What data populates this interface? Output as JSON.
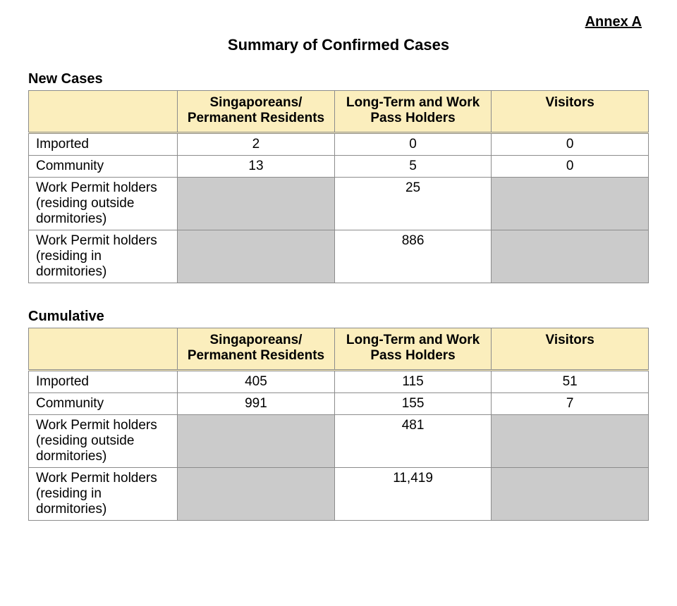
{
  "annex": "Annex A",
  "title": "Summary of Confirmed Cases",
  "colors": {
    "header_bg": "#fbeebd",
    "blank_bg": "#cbcbcb",
    "border": "#8c8c8c",
    "page_bg": "#ffffff",
    "text": "#000000"
  },
  "typography": {
    "title_fontsize": 22,
    "section_fontsize": 20,
    "cell_fontsize": 19,
    "annex_fontsize": 20,
    "font_family": "Arial"
  },
  "columns": [
    "Singaporeans/ Permanent Residents",
    "Long-Term and Work Pass Holders",
    "Visitors"
  ],
  "column_widths_pct": [
    24,
    25.3,
    25.3,
    25.3
  ],
  "row_labels": {
    "imported": "Imported",
    "community": "Community",
    "wp_outside": "Work Permit holders (residing outside dormitories)",
    "wp_inside": "Work Permit holders (residing in dormitories)"
  },
  "sections": {
    "new": {
      "heading": "New Cases",
      "rows": {
        "imported": {
          "spr": "2",
          "ltwp": "0",
          "visitors": "0"
        },
        "community": {
          "spr": "13",
          "ltwp": "5",
          "visitors": "0"
        },
        "wp_outside": {
          "spr": null,
          "ltwp": "25",
          "visitors": null
        },
        "wp_inside": {
          "spr": null,
          "ltwp": "886",
          "visitors": null
        }
      }
    },
    "cumulative": {
      "heading": "Cumulative",
      "rows": {
        "imported": {
          "spr": "405",
          "ltwp": "115",
          "visitors": "51"
        },
        "community": {
          "spr": "991",
          "ltwp": "155",
          "visitors": "7"
        },
        "wp_outside": {
          "spr": null,
          "ltwp": "481",
          "visitors": null
        },
        "wp_inside": {
          "spr": null,
          "ltwp": "11,419",
          "visitors": null
        }
      }
    }
  }
}
